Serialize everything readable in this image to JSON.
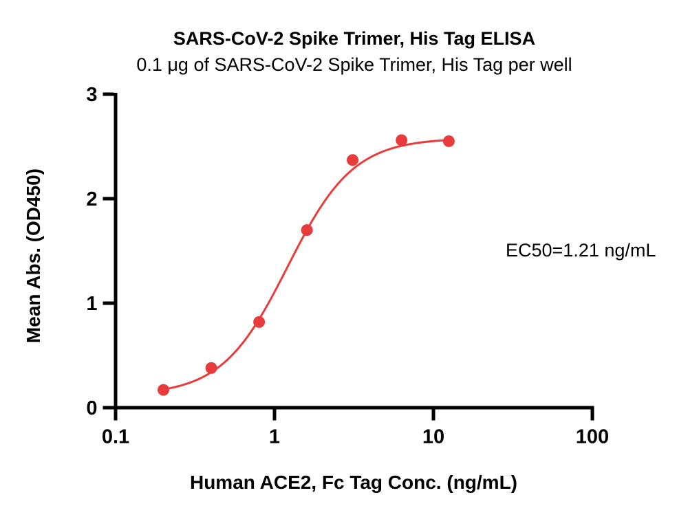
{
  "page": {
    "background": "#ffffff"
  },
  "chart_data": {
    "type": "scatter",
    "title": "SARS-CoV-2 Spike Trimer, His Tag ELISA",
    "subtitle": "0.1 μg of SARS-CoV-2 Spike Trimer, His Tag per well",
    "xlabel": "Human ACE2, Fc Tag Conc. (ng/mL)",
    "ylabel": "Mean Abs. (OD450)",
    "annotation": "EC50=1.21 ng/mL",
    "xscale": "log",
    "xlim": [
      0.1,
      100
    ],
    "ylim": [
      0,
      3
    ],
    "xtick_labels": [
      "0.1",
      "1",
      "10",
      "100"
    ],
    "ytick_labels": [
      "0",
      "1",
      "2",
      "3"
    ],
    "grid": false,
    "legend": false,
    "series": [
      {
        "x": [
          0.2,
          0.4,
          0.8,
          1.6,
          3.1,
          6.3,
          12.5
        ],
        "y": [
          0.17,
          0.38,
          0.82,
          1.7,
          2.37,
          2.56,
          2.55
        ],
        "marker": "circle",
        "color": "#E83C3C"
      }
    ],
    "fit_curve": {
      "model": "4PL",
      "bottom": 0.12,
      "top": 2.58,
      "ec50": 1.21,
      "hillslope": 2.1,
      "x_start": 0.195,
      "x_end": 12.5,
      "color": "#E83C3C"
    },
    "axis_color": "#000000",
    "text_color": "#000000"
  }
}
